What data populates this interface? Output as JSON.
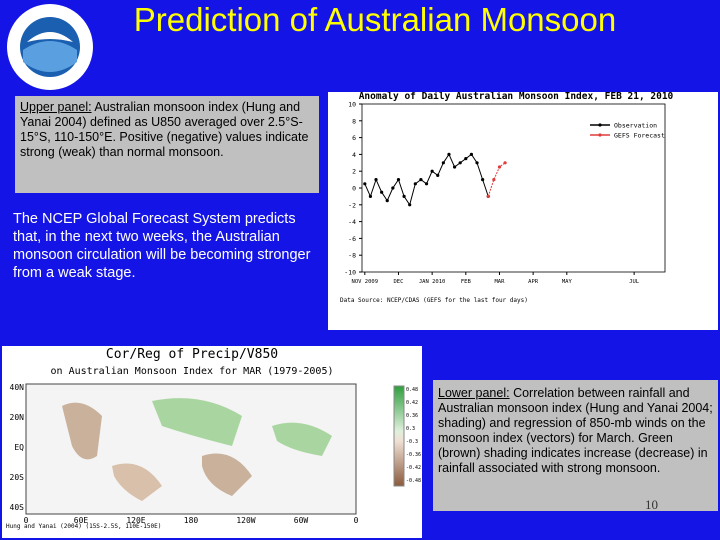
{
  "header": {
    "title": "Prediction of Australian Monsoon"
  },
  "upper_panel": {
    "label": "Upper panel:",
    "text": "Australian monsoon index (Hung and Yanai 2004) defined as U850 averaged over 2.5°S-15°S, 110-150°E. Positive (negative) values indicate strong (weak) than normal monsoon."
  },
  "middle_text": "The NCEP Global Forecast System predicts that, in the next two weeks, the Australian monsoon circulation will be becoming stronger from a weak stage.",
  "lower_panel": {
    "label": "Lower panel:",
    "text": "Correlation between rainfall and Australian monsoon index (Hung and Yanai 2004; shading) and regression of 850-mb winds on the monsoon index (vectors) for March. Green (brown) shading indicates increase (decrease) in rainfall associated with strong monsoon."
  },
  "page_number": "10",
  "chart_data": {
    "type": "line",
    "title": "Anomaly of Daily Australian Monsoon Index, FEB 21, 2010",
    "note": "Data Source: NCEP/CDAS (GEFS for the last four days)",
    "categories": [
      "NOV 2009",
      null,
      null,
      null,
      null,
      null,
      "DEC",
      null,
      null,
      null,
      null,
      null,
      "JAN 2010",
      null,
      null,
      null,
      null,
      null,
      "FEB",
      null,
      null,
      null,
      null,
      null,
      "MAR",
      null,
      null,
      null,
      null,
      null,
      "APR",
      null,
      null,
      null,
      null,
      null,
      "MAY",
      null,
      null,
      null,
      null,
      null,
      null,
      null,
      null,
      null,
      null,
      null,
      "JUL",
      null,
      null,
      null,
      null,
      null
    ],
    "series": [
      {
        "name": "Observation",
        "color": "#000000",
        "values": [
          0.5,
          -1,
          1,
          -0.5,
          -1.5,
          0,
          1,
          -1,
          -2,
          0.5,
          1,
          0.5,
          2,
          1.5,
          3,
          4,
          2.5,
          3,
          3.5,
          4,
          3,
          1,
          -1,
          null,
          null,
          null,
          null,
          null,
          null,
          null,
          null,
          null,
          null,
          null,
          null,
          null,
          null,
          null,
          null,
          null,
          null,
          null,
          null,
          null,
          null,
          null,
          null,
          null,
          null,
          null,
          null,
          null,
          null,
          null
        ]
      },
      {
        "name": "GEFS Forecast",
        "color": "#e03c3c",
        "values": [
          null,
          null,
          null,
          null,
          null,
          null,
          null,
          null,
          null,
          null,
          null,
          null,
          null,
          null,
          null,
          null,
          null,
          null,
          null,
          null,
          null,
          null,
          -1,
          1,
          2.5,
          3,
          null,
          null,
          null,
          null,
          null,
          null,
          null,
          null,
          null,
          null,
          null,
          null,
          null,
          null,
          null,
          null,
          null,
          null,
          null,
          null,
          null,
          null,
          null,
          null,
          null,
          null,
          null,
          null
        ]
      }
    ],
    "ylim": [
      -10,
      10
    ],
    "yticks": [
      -10,
      -8,
      -6,
      -4,
      -2,
      0,
      2,
      4,
      6,
      8,
      10
    ],
    "grid": false
  },
  "lower_map": {
    "title": "Cor/Reg of Precip/V850",
    "subtitle": "on Australian Monsoon Index for MAR (1979-2005)",
    "lat_labels": [
      "40N",
      "20N",
      "EQ",
      "20S",
      "40S"
    ],
    "lon_labels": [
      "0",
      "60E",
      "120E",
      "180",
      "120W",
      "60W",
      "0"
    ],
    "colorbar_labels": [
      "0.48",
      "0.42",
      "0.36",
      "0.3",
      "-0.3",
      "-0.36",
      "-0.42",
      "-0.48"
    ],
    "footnote": "Hung and Yanai (2004) (15S-2.5S, 110E-150E)"
  }
}
